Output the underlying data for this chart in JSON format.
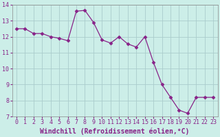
{
  "x": [
    0,
    1,
    2,
    3,
    4,
    5,
    6,
    7,
    8,
    9,
    10,
    11,
    12,
    13,
    14,
    15,
    16,
    17,
    18,
    19,
    20,
    21,
    22,
    23
  ],
  "y": [
    12.5,
    12.5,
    12.2,
    12.2,
    12.0,
    11.9,
    11.75,
    13.6,
    13.65,
    12.9,
    11.8,
    11.6,
    12.0,
    11.55,
    11.35,
    12.0,
    10.4,
    9.0,
    8.2,
    7.4,
    7.2,
    8.2,
    8.2,
    8.2
  ],
  "line_color": "#882288",
  "marker": "D",
  "marker_size": 2.5,
  "bg_color": "#cceee8",
  "grid_color": "#aacccc",
  "xlabel": "Windchill (Refroidissement éolien,°C)",
  "xlabel_fontsize": 7,
  "tick_color": "#882288",
  "ylim": [
    7,
    14
  ],
  "xlim": [
    -0.5,
    23.5
  ],
  "yticks": [
    7,
    8,
    9,
    10,
    11,
    12,
    13,
    14
  ],
  "xticks": [
    0,
    1,
    2,
    3,
    4,
    5,
    6,
    7,
    8,
    9,
    10,
    11,
    12,
    13,
    14,
    15,
    16,
    17,
    18,
    19,
    20,
    21,
    22,
    23
  ],
  "tick_fontsize": 6
}
